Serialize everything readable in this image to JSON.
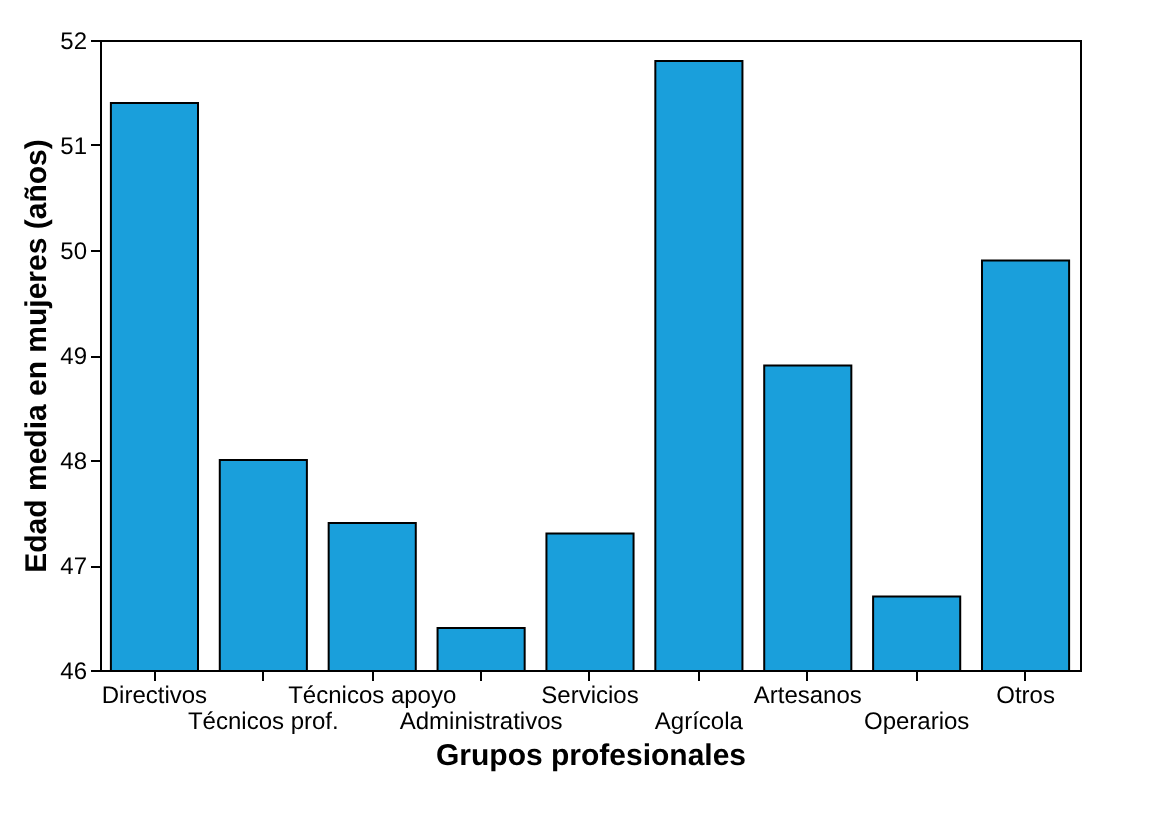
{
  "chart_data": {
    "type": "bar",
    "xlabel": "Grupos profesionales",
    "ylabel": "Edad media en mujeres (años)",
    "categories": [
      "Directivos",
      "Técnicos prof.",
      "Técnicos apoyo",
      "Administrativos",
      "Servicios",
      "Agrícola",
      "Artesanos",
      "Operarios",
      "Otros"
    ],
    "values": [
      51.4,
      48.0,
      47.4,
      46.4,
      47.3,
      51.8,
      48.9,
      46.7,
      49.9
    ],
    "color": "#1a9fdb",
    "ylim": [
      46,
      52
    ],
    "yticks": [
      46,
      47,
      48,
      49,
      50,
      51,
      52
    ],
    "grid": false
  }
}
